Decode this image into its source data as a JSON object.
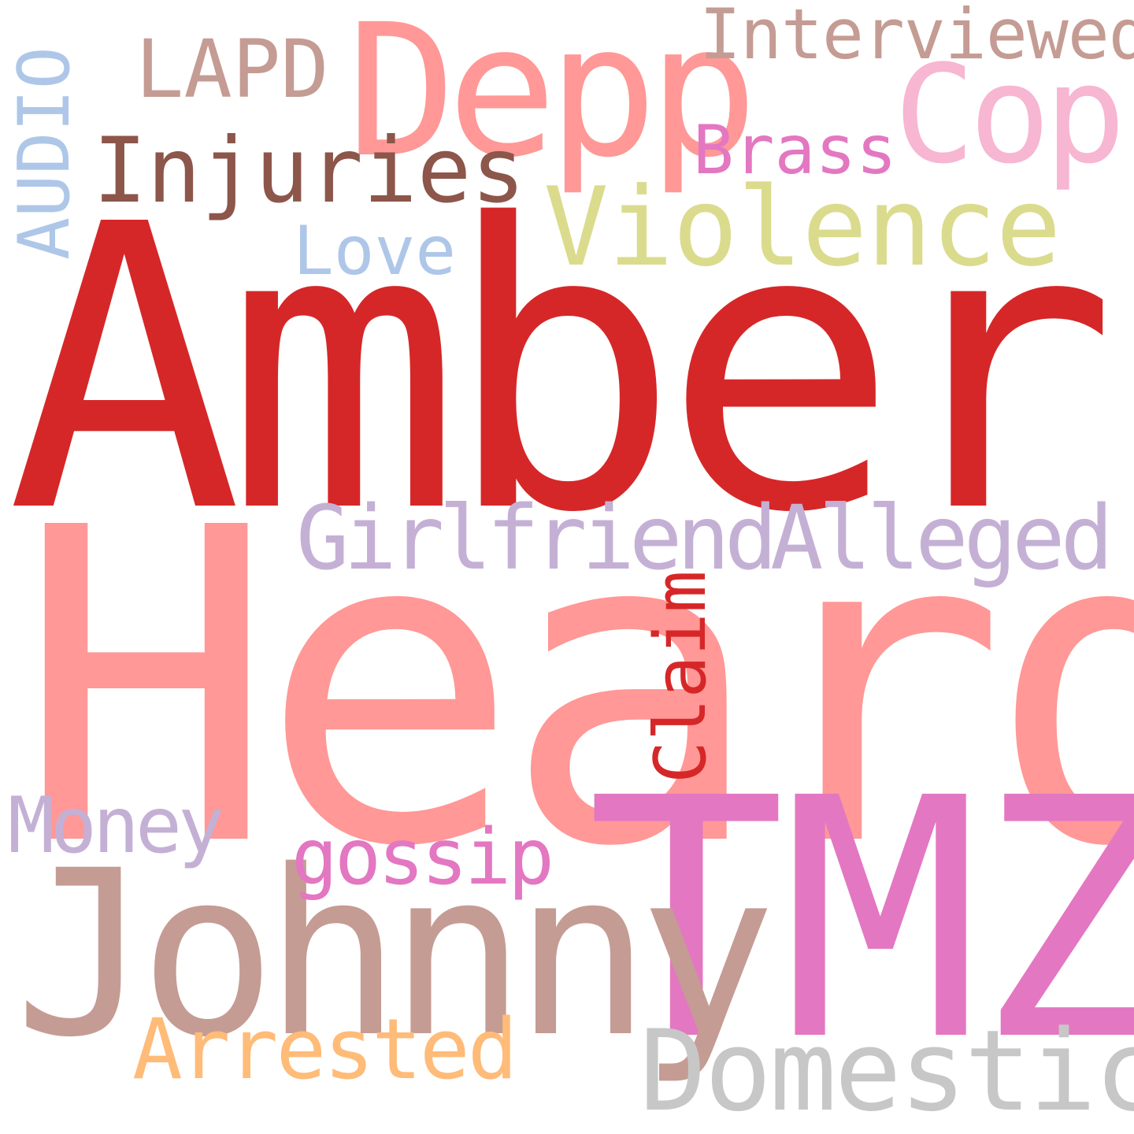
{
  "background_color": "#ffffff",
  "words": {
    "amber": {
      "text": "Amber",
      "color": "#d62728"
    },
    "heard": {
      "text": "Heard",
      "color": "#ff9896"
    },
    "tmz": {
      "text": "TMZ",
      "color": "#e377c2"
    },
    "johnny": {
      "text": "Johnny",
      "color": "#c49c94"
    },
    "depp": {
      "text": "Depp",
      "color": "#ff9896"
    },
    "cop": {
      "text": "Cop",
      "color": "#f7b6d2"
    },
    "violence": {
      "text": "Violence",
      "color": "#dbdb8d"
    },
    "domestic": {
      "text": "Domestic",
      "color": "#c7c7c7"
    },
    "injuries": {
      "text": "Injuries",
      "color": "#8c564b"
    },
    "interviewed": {
      "text": "Interviewed",
      "color": "#c49c94"
    },
    "lapd": {
      "text": "LAPD",
      "color": "#c49c94"
    },
    "brass": {
      "text": "Brass",
      "color": "#e377c2"
    },
    "love": {
      "text": "Love",
      "color": "#aec7e8"
    },
    "audio": {
      "text": "AUDIO",
      "color": "#aec7e8"
    },
    "girlfriend": {
      "text": "Girlfriend",
      "color": "#c5b0d5"
    },
    "alleged": {
      "text": "Alleged",
      "color": "#c5b0d5"
    },
    "claim": {
      "text": "Claim",
      "color": "#d62728"
    },
    "money": {
      "text": "Money",
      "color": "#c5b0d5"
    },
    "gossip": {
      "text": "gossip",
      "color": "#e377c2"
    },
    "arrested": {
      "text": "Arrested",
      "color": "#ffbb78"
    }
  }
}
